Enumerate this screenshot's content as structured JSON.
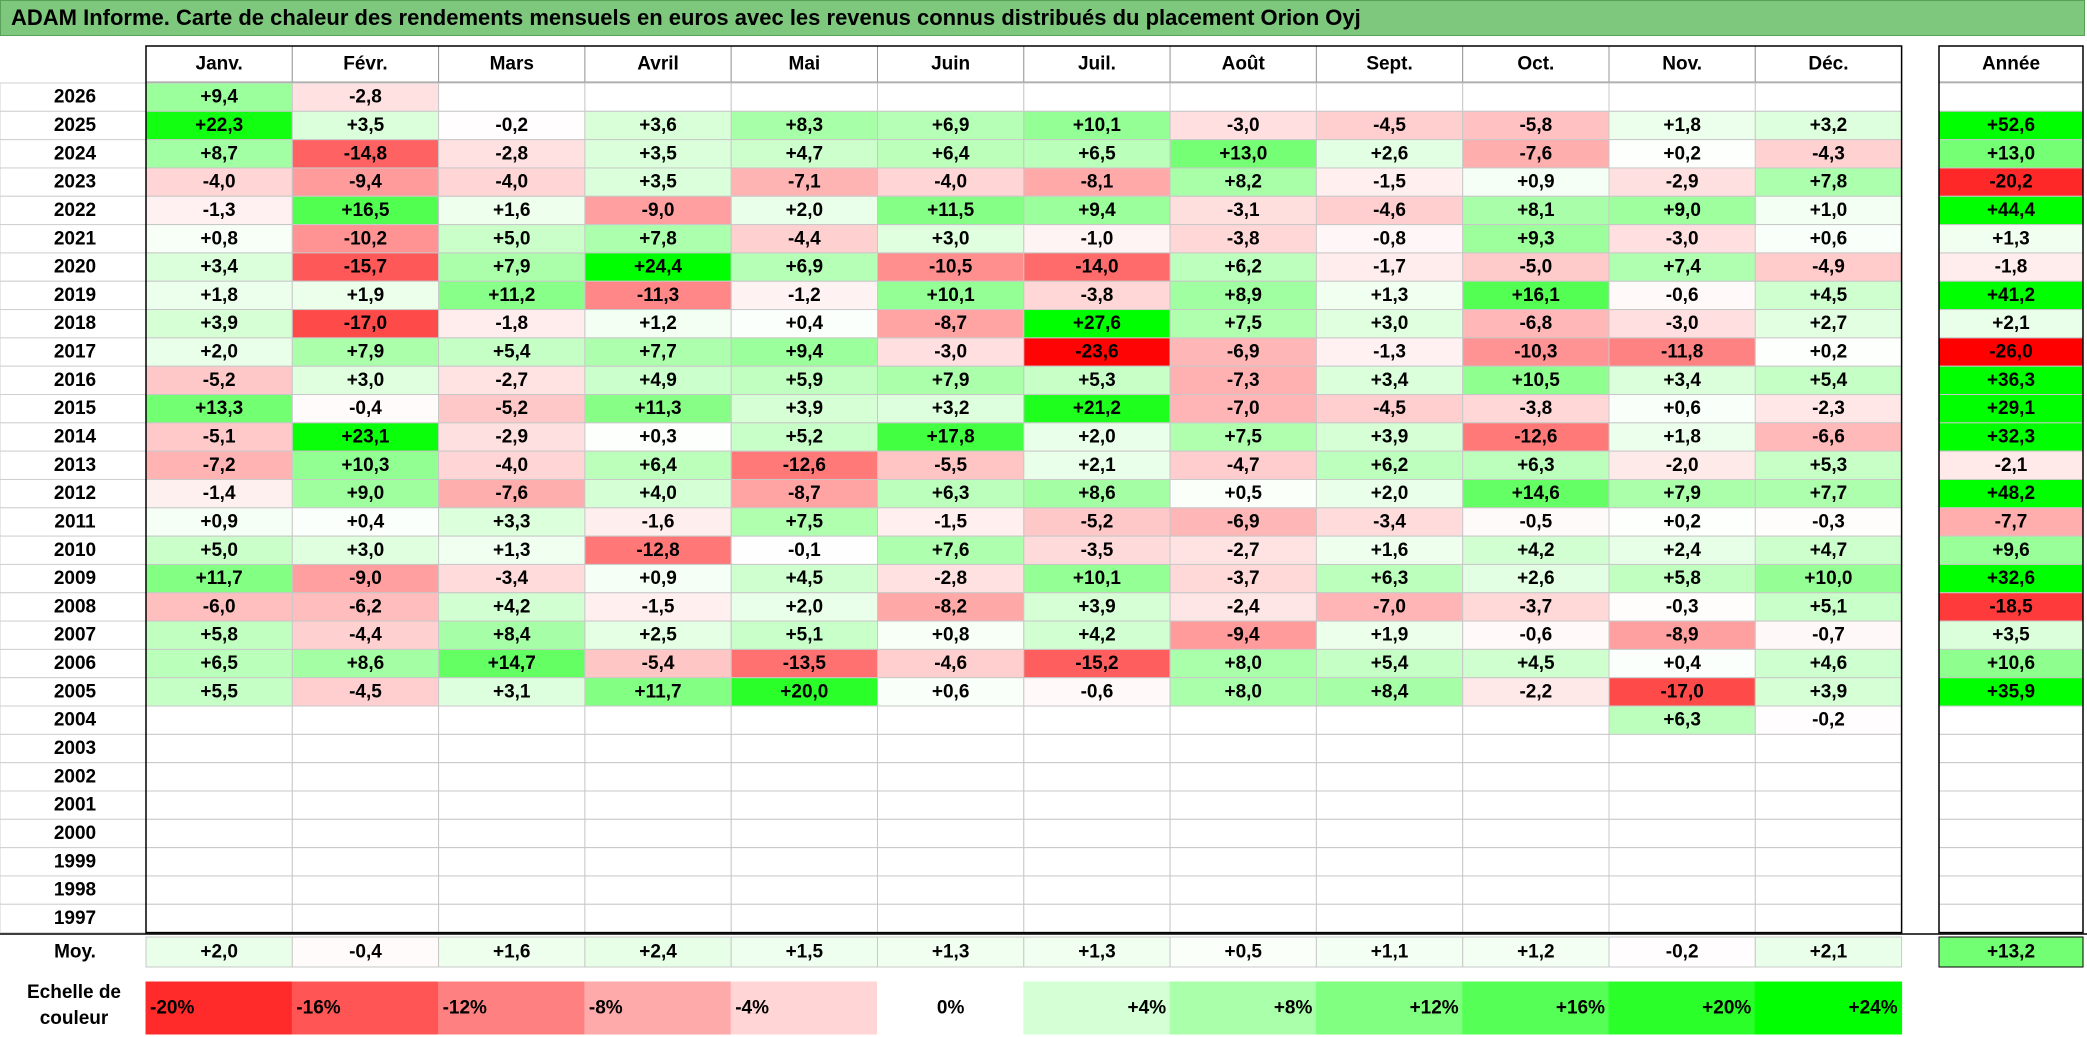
{
  "title": "ADAM Informe. Carte de chaleur des rendements mensuels en euros avec les revenus connus distribués du placement Orion Oyj",
  "chart_data": {
    "type": "heatmap",
    "months": [
      "Janv.",
      "Févr.",
      "Mars",
      "Avril",
      "Mai",
      "Juin",
      "Juil.",
      "Août",
      "Sept.",
      "Oct.",
      "Nov.",
      "Déc."
    ],
    "year_header": "Année",
    "rows": [
      {
        "year": "2026",
        "values": [
          "+9,4",
          "-2,8",
          "",
          "",
          "",
          "",
          "",
          "",
          "",
          "",
          "",
          ""
        ],
        "annual": ""
      },
      {
        "year": "2025",
        "values": [
          "+22,3",
          "+3,5",
          "-0,2",
          "+3,6",
          "+8,3",
          "+6,9",
          "+10,1",
          "-3,0",
          "-4,5",
          "-5,8",
          "+1,8",
          "+3,2"
        ],
        "annual": "+52,6"
      },
      {
        "year": "2024",
        "values": [
          "+8,7",
          "-14,8",
          "-2,8",
          "+3,5",
          "+4,7",
          "+6,4",
          "+6,5",
          "+13,0",
          "+2,6",
          "-7,6",
          "+0,2",
          "-4,3"
        ],
        "annual": "+13,0"
      },
      {
        "year": "2023",
        "values": [
          "-4,0",
          "-9,4",
          "-4,0",
          "+3,5",
          "-7,1",
          "-4,0",
          "-8,1",
          "+8,2",
          "-1,5",
          "+0,9",
          "-2,9",
          "+7,8"
        ],
        "annual": "-20,2"
      },
      {
        "year": "2022",
        "values": [
          "-1,3",
          "+16,5",
          "+1,6",
          "-9,0",
          "+2,0",
          "+11,5",
          "+9,4",
          "-3,1",
          "-4,6",
          "+8,1",
          "+9,0",
          "+1,0"
        ],
        "annual": "+44,4"
      },
      {
        "year": "2021",
        "values": [
          "+0,8",
          "-10,2",
          "+5,0",
          "+7,8",
          "-4,4",
          "+3,0",
          "-1,0",
          "-3,8",
          "-0,8",
          "+9,3",
          "-3,0",
          "+0,6"
        ],
        "annual": "+1,3"
      },
      {
        "year": "2020",
        "values": [
          "+3,4",
          "-15,7",
          "+7,9",
          "+24,4",
          "+6,9",
          "-10,5",
          "-14,0",
          "+6,2",
          "-1,7",
          "-5,0",
          "+7,4",
          "-4,9"
        ],
        "annual": "-1,8"
      },
      {
        "year": "2019",
        "values": [
          "+1,8",
          "+1,9",
          "+11,2",
          "-11,3",
          "-1,2",
          "+10,1",
          "-3,8",
          "+8,9",
          "+1,3",
          "+16,1",
          "-0,6",
          "+4,5"
        ],
        "annual": "+41,2"
      },
      {
        "year": "2018",
        "values": [
          "+3,9",
          "-17,0",
          "-1,8",
          "+1,2",
          "+0,4",
          "-8,7",
          "+27,6",
          "+7,5",
          "+3,0",
          "-6,8",
          "-3,0",
          "+2,7"
        ],
        "annual": "+2,1"
      },
      {
        "year": "2017",
        "values": [
          "+2,0",
          "+7,9",
          "+5,4",
          "+7,7",
          "+9,4",
          "-3,0",
          "-23,6",
          "-6,9",
          "-1,3",
          "-10,3",
          "-11,8",
          "+0,2"
        ],
        "annual": "-26,0"
      },
      {
        "year": "2016",
        "values": [
          "-5,2",
          "+3,0",
          "-2,7",
          "+4,9",
          "+5,9",
          "+7,9",
          "+5,3",
          "-7,3",
          "+3,4",
          "+10,5",
          "+3,4",
          "+5,4"
        ],
        "annual": "+36,3"
      },
      {
        "year": "2015",
        "values": [
          "+13,3",
          "-0,4",
          "-5,2",
          "+11,3",
          "+3,9",
          "+3,2",
          "+21,2",
          "-7,0",
          "-4,5",
          "-3,8",
          "+0,6",
          "-2,3"
        ],
        "annual": "+29,1"
      },
      {
        "year": "2014",
        "values": [
          "-5,1",
          "+23,1",
          "-2,9",
          "+0,3",
          "+5,2",
          "+17,8",
          "+2,0",
          "+7,5",
          "+3,9",
          "-12,6",
          "+1,8",
          "-6,6"
        ],
        "annual": "+32,3"
      },
      {
        "year": "2013",
        "values": [
          "-7,2",
          "+10,3",
          "-4,0",
          "+6,4",
          "-12,6",
          "-5,5",
          "+2,1",
          "-4,7",
          "+6,2",
          "+6,3",
          "-2,0",
          "+5,3"
        ],
        "annual": "-2,1"
      },
      {
        "year": "2012",
        "values": [
          "-1,4",
          "+9,0",
          "-7,6",
          "+4,0",
          "-8,7",
          "+6,3",
          "+8,6",
          "+0,5",
          "+2,0",
          "+14,6",
          "+7,9",
          "+7,7"
        ],
        "annual": "+48,2"
      },
      {
        "year": "2011",
        "values": [
          "+0,9",
          "+0,4",
          "+3,3",
          "-1,6",
          "+7,5",
          "-1,5",
          "-5,2",
          "-6,9",
          "-3,4",
          "-0,5",
          "+0,2",
          "-0,3"
        ],
        "annual": "-7,7"
      },
      {
        "year": "2010",
        "values": [
          "+5,0",
          "+3,0",
          "+1,3",
          "-12,8",
          "-0,1",
          "+7,6",
          "-3,5",
          "-2,7",
          "+1,6",
          "+4,2",
          "+2,4",
          "+4,7"
        ],
        "annual": "+9,6"
      },
      {
        "year": "2009",
        "values": [
          "+11,7",
          "-9,0",
          "-3,4",
          "+0,9",
          "+4,5",
          "-2,8",
          "+10,1",
          "-3,7",
          "+6,3",
          "+2,6",
          "+5,8",
          "+10,0"
        ],
        "annual": "+32,6"
      },
      {
        "year": "2008",
        "values": [
          "-6,0",
          "-6,2",
          "+4,2",
          "-1,5",
          "+2,0",
          "-8,2",
          "+3,9",
          "-2,4",
          "-7,0",
          "-3,7",
          "-0,3",
          "+5,1"
        ],
        "annual": "-18,5"
      },
      {
        "year": "2007",
        "values": [
          "+5,8",
          "-4,4",
          "+8,4",
          "+2,5",
          "+5,1",
          "+0,8",
          "+4,2",
          "-9,4",
          "+1,9",
          "-0,6",
          "-8,9",
          "-0,7"
        ],
        "annual": "+3,5"
      },
      {
        "year": "2006",
        "values": [
          "+6,5",
          "+8,6",
          "+14,7",
          "-5,4",
          "-13,5",
          "-4,6",
          "-15,2",
          "+8,0",
          "+5,4",
          "+4,5",
          "+0,4",
          "+4,6"
        ],
        "annual": "+10,6"
      },
      {
        "year": "2005",
        "values": [
          "+5,5",
          "-4,5",
          "+3,1",
          "+11,7",
          "+20,0",
          "+0,6",
          "-0,6",
          "+8,0",
          "+8,4",
          "-2,2",
          "-17,0",
          "+3,9"
        ],
        "annual": "+35,9"
      },
      {
        "year": "2004",
        "values": [
          "",
          "",
          "",
          "",
          "",
          "",
          "",
          "",
          "",
          "",
          "+6,3",
          "-0,2"
        ],
        "annual": ""
      },
      {
        "year": "2003",
        "values": [
          "",
          "",
          "",
          "",
          "",
          "",
          "",
          "",
          "",
          "",
          "",
          ""
        ],
        "annual": ""
      },
      {
        "year": "2002",
        "values": [
          "",
          "",
          "",
          "",
          "",
          "",
          "",
          "",
          "",
          "",
          "",
          ""
        ],
        "annual": ""
      },
      {
        "year": "2001",
        "values": [
          "",
          "",
          "",
          "",
          "",
          "",
          "",
          "",
          "",
          "",
          "",
          ""
        ],
        "annual": ""
      },
      {
        "year": "2000",
        "values": [
          "",
          "",
          "",
          "",
          "",
          "",
          "",
          "",
          "",
          "",
          "",
          ""
        ],
        "annual": ""
      },
      {
        "year": "1999",
        "values": [
          "",
          "",
          "",
          "",
          "",
          "",
          "",
          "",
          "",
          "",
          "",
          ""
        ],
        "annual": ""
      },
      {
        "year": "1998",
        "values": [
          "",
          "",
          "",
          "",
          "",
          "",
          "",
          "",
          "",
          "",
          "",
          ""
        ],
        "annual": ""
      },
      {
        "year": "1997",
        "values": [
          "",
          "",
          "",
          "",
          "",
          "",
          "",
          "",
          "",
          "",
          "",
          ""
        ],
        "annual": ""
      }
    ],
    "average": {
      "label": "Moy.",
      "values": [
        "+2,0",
        "-0,4",
        "+1,6",
        "+2,4",
        "+1,5",
        "+1,3",
        "+1,3",
        "+0,5",
        "+1,1",
        "+1,2",
        "-0,2",
        "+2,1"
      ],
      "annual": "+13,2"
    },
    "color_scale": {
      "label_line1": "Echelle de",
      "label_line2": "couleur",
      "stops": [
        "-20%",
        "-16%",
        "-12%",
        "-8%",
        "-4%",
        "0%",
        "+4%",
        "+8%",
        "+12%",
        "+16%",
        "+20%",
        "+24%"
      ],
      "stop_values": [
        -20,
        -16,
        -12,
        -8,
        -4,
        0,
        4,
        8,
        12,
        16,
        20,
        24
      ],
      "negative_color": "#ff0000",
      "neutral_color": "#ffffff",
      "positive_color": "#00ff00"
    }
  }
}
